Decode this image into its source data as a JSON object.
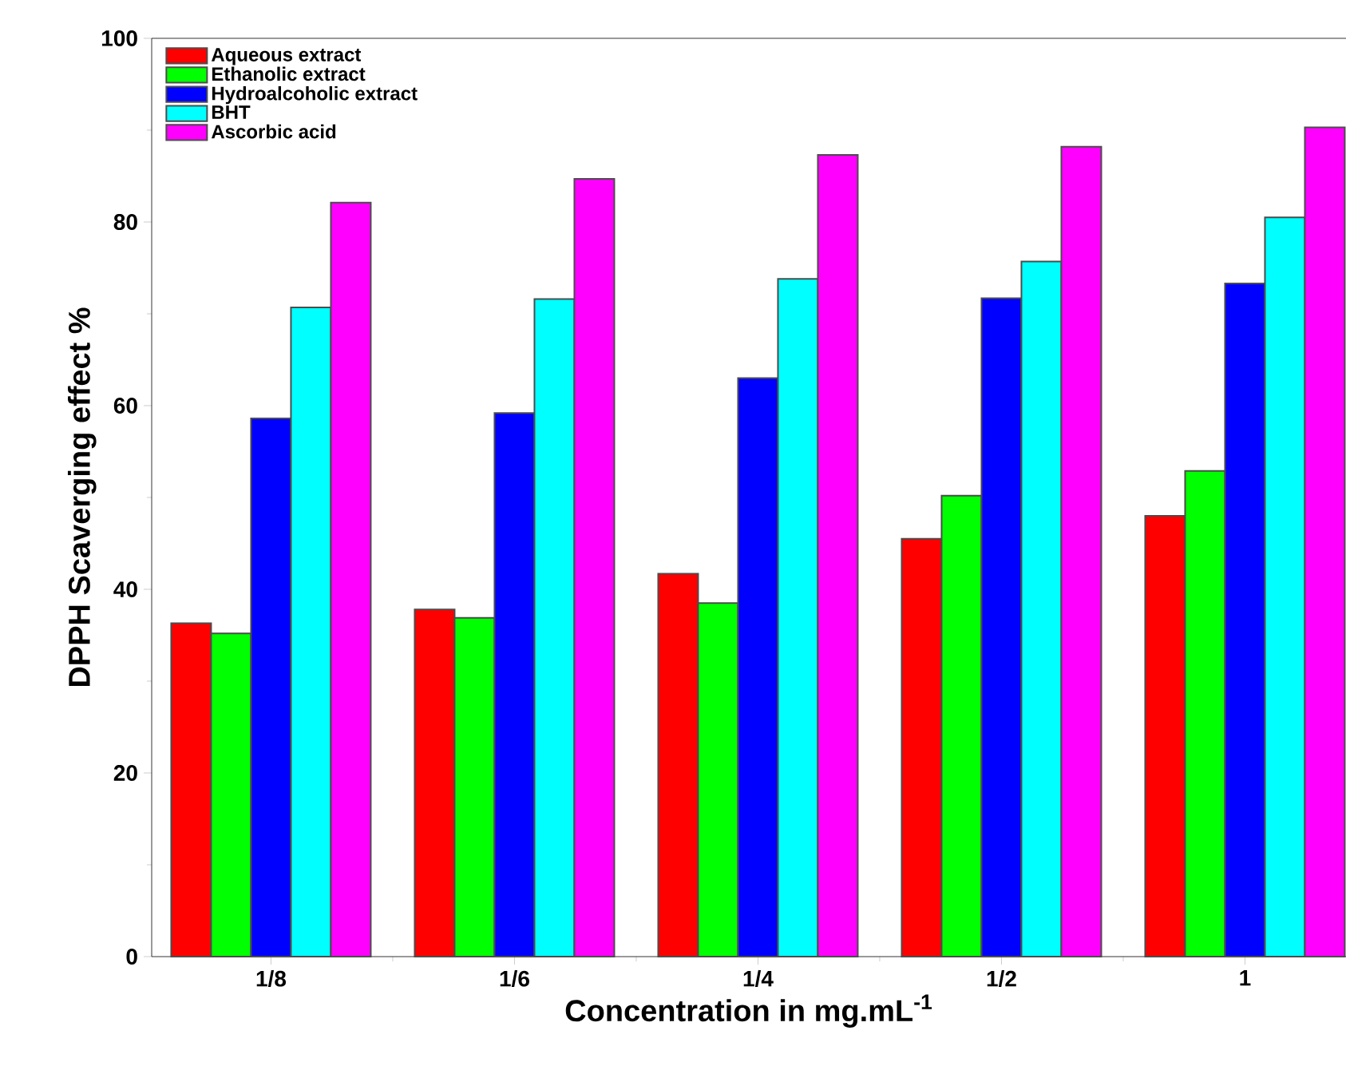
{
  "chart_data": {
    "type": "bar",
    "xlabel": "Concentration in mg.mL$^{-1}$",
    "ylabel": "DPPH Scaverging effect %",
    "categories": [
      "1/8",
      "1/6",
      "1/4",
      "1/2",
      "1"
    ],
    "series": [
      {
        "name": "Aqueous extract",
        "color": "#ff0000",
        "values": [
          36.3,
          37.8,
          41.7,
          45.5,
          48.0
        ]
      },
      {
        "name": "Ethanolic extract",
        "color": "#00ff00",
        "values": [
          35.2,
          36.9,
          38.5,
          50.2,
          52.9
        ]
      },
      {
        "name": "Hydroalcoholic extract",
        "color": "#0000ff",
        "values": [
          58.6,
          59.2,
          63.0,
          71.7,
          73.3
        ]
      },
      {
        "name": "BHT",
        "color": "#00ffff",
        "values": [
          70.7,
          71.6,
          73.8,
          75.7,
          80.5
        ]
      },
      {
        "name": "Ascorbic acid",
        "color": "#ff00ff",
        "values": [
          82.1,
          84.7,
          87.3,
          88.2,
          90.3
        ]
      }
    ],
    "ylim": [
      0,
      100
    ],
    "yticks": [
      0,
      20,
      40,
      60,
      80,
      100
    ],
    "legend": "top left",
    "grid": false
  }
}
